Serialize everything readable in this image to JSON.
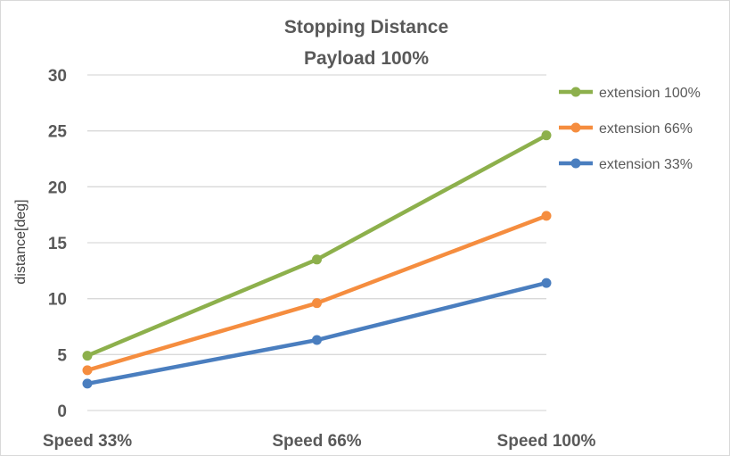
{
  "chart_data": {
    "type": "line",
    "title": "Stopping Distance",
    "subtitle": "Payload 100%",
    "xlabel": "",
    "ylabel": "distance[deg]",
    "categories": [
      "Speed 33%",
      "Speed 66%",
      "Speed 100%"
    ],
    "ylim": [
      0,
      30
    ],
    "yticks": [
      0,
      5,
      10,
      15,
      20,
      25,
      30
    ],
    "grid": true,
    "legend_placement": "right",
    "series": [
      {
        "name": "extension 100%",
        "color": "#8db04c",
        "values": [
          4.9,
          13.5,
          24.6
        ]
      },
      {
        "name": "extension 66%",
        "color": "#f58d3f",
        "values": [
          3.6,
          9.6,
          17.4
        ]
      },
      {
        "name": "extension 33%",
        "color": "#4a7ebf",
        "values": [
          2.4,
          6.3,
          11.4
        ]
      }
    ]
  }
}
